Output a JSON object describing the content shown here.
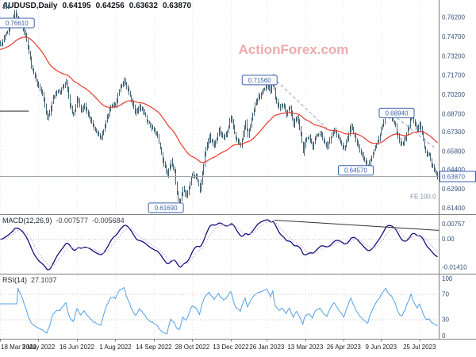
{
  "window": {
    "title_symbol": "AUDUSD,Daily",
    "ohlc": {
      "open": "0.64195",
      "high": "0.64256",
      "low": "0.63632",
      "close": "0.63870"
    }
  },
  "watermark": "ActionForex.com",
  "indicators": {
    "macd": {
      "label": "MACD(12,26,9)",
      "value_main": "-0.007577",
      "value_signal": "-0.005684"
    },
    "rsi": {
      "label": "RSI(14)",
      "value": "27.1037"
    }
  },
  "colors": {
    "candle": "#456575",
    "ma": "#e8392c",
    "macd_main": "#10107e",
    "macd_signal": "#cc99cc",
    "rsi": "#55a0e6",
    "axis_text": "#33517a",
    "label": "#3a5fae",
    "date_text": "#1c1c1c",
    "watermark": "#ecaaaa",
    "grid": "#e4e4ec",
    "separator": "#7f7f7f",
    "current_line": "#a0a6ad",
    "trend_dash": "#9aa2ac",
    "macd_trend": "#333333",
    "fe_text": "#7f93a8",
    "rsi_level": "#c0c0d2",
    "zero_line": "#c8c8c8",
    "hline": "#3c3c3c"
  },
  "chart_data": {
    "type": "candlestick",
    "symbol": "AUDUSD",
    "timeframe": "Daily",
    "last_bar": {
      "open": 0.64195,
      "high": 0.64256,
      "low": 0.63632,
      "close": 0.6387
    },
    "price_panel": {
      "days": 365,
      "range": [
        0.6095,
        0.7755
      ],
      "ma": {
        "period": 55,
        "seed": 0.737
      },
      "close_waypoints": [
        [
          0,
          0.741
        ],
        [
          5,
          0.75
        ],
        [
          9,
          0.756
        ],
        [
          12,
          0.766
        ],
        [
          15,
          0.76
        ],
        [
          18,
          0.756
        ],
        [
          22,
          0.745
        ],
        [
          26,
          0.725
        ],
        [
          29,
          0.715
        ],
        [
          32,
          0.709
        ],
        [
          35,
          0.702
        ],
        [
          37,
          0.693
        ],
        [
          39,
          0.683
        ],
        [
          41,
          0.688
        ],
        [
          44,
          0.7
        ],
        [
          47,
          0.705
        ],
        [
          50,
          0.705
        ],
        [
          55,
          0.712
        ],
        [
          58,
          0.695
        ],
        [
          61,
          0.686
        ],
        [
          64,
          0.7
        ],
        [
          67,
          0.69
        ],
        [
          70,
          0.694
        ],
        [
          74,
          0.685
        ],
        [
          78,
          0.676
        ],
        [
          81,
          0.672
        ],
        [
          84,
          0.669
        ],
        [
          88,
          0.681
        ],
        [
          92,
          0.693
        ],
        [
          96,
          0.694
        ],
        [
          99,
          0.706
        ],
        [
          103,
          0.713
        ],
        [
          107,
          0.703
        ],
        [
          110,
          0.695
        ],
        [
          113,
          0.688
        ],
        [
          116,
          0.693
        ],
        [
          119,
          0.689
        ],
        [
          122,
          0.683
        ],
        [
          125,
          0.678
        ],
        [
          128,
          0.6746
        ],
        [
          131,
          0.67
        ],
        [
          134,
          0.656
        ],
        [
          136,
          0.648
        ],
        [
          139,
          0.64
        ],
        [
          142,
          0.65
        ],
        [
          145,
          0.642
        ],
        [
          147,
          0.625
        ],
        [
          149,
          0.617
        ],
        [
          152,
          0.63
        ],
        [
          155,
          0.622
        ],
        [
          158,
          0.634
        ],
        [
          160,
          0.641
        ],
        [
          163,
          0.639
        ],
        [
          166,
          0.628
        ],
        [
          170,
          0.655
        ],
        [
          174,
          0.67
        ],
        [
          178,
          0.662
        ],
        [
          182,
          0.675
        ],
        [
          186,
          0.668
        ],
        [
          189,
          0.674
        ],
        [
          192,
          0.6857
        ],
        [
          196,
          0.668
        ],
        [
          200,
          0.663
        ],
        [
          204,
          0.681
        ],
        [
          206,
          0.669
        ],
        [
          210,
          0.688
        ],
        [
          214,
          0.699
        ],
        [
          218,
          0.704
        ],
        [
          222,
          0.71
        ],
        [
          225,
          0.705
        ],
        [
          227,
          0.7156
        ],
        [
          229,
          0.699
        ],
        [
          232,
          0.692
        ],
        [
          235,
          0.695
        ],
        [
          238,
          0.687
        ],
        [
          241,
          0.693
        ],
        [
          244,
          0.679
        ],
        [
          247,
          0.685
        ],
        [
          250,
          0.672
        ],
        [
          252,
          0.658
        ],
        [
          254,
          0.666
        ],
        [
          257,
          0.67
        ],
        [
          260,
          0.662
        ],
        [
          263,
          0.67
        ],
        [
          266,
          0.673
        ],
        [
          269,
          0.666
        ],
        [
          272,
          0.662
        ],
        [
          275,
          0.669
        ],
        [
          278,
          0.675
        ],
        [
          281,
          0.67
        ],
        [
          284,
          0.664
        ],
        [
          286,
          0.66
        ],
        [
          289,
          0.668
        ],
        [
          292,
          0.678
        ],
        [
          295,
          0.67
        ],
        [
          298,
          0.662
        ],
        [
          301,
          0.655
        ],
        [
          304,
          0.649
        ],
        [
          306,
          0.646
        ],
        [
          309,
          0.654
        ],
        [
          312,
          0.662
        ],
        [
          314,
          0.666
        ],
        [
          317,
          0.6745
        ],
        [
          319,
          0.681
        ],
        [
          321,
          0.6894
        ],
        [
          323,
          0.686
        ],
        [
          326,
          0.683
        ],
        [
          329,
          0.677
        ],
        [
          332,
          0.666
        ],
        [
          334,
          0.663
        ],
        [
          337,
          0.668
        ],
        [
          340,
          0.678
        ],
        [
          342,
          0.6885
        ],
        [
          344,
          0.682
        ],
        [
          347,
          0.675
        ],
        [
          349,
          0.679
        ],
        [
          351,
          0.672
        ],
        [
          353,
          0.662
        ],
        [
          355,
          0.654
        ],
        [
          357,
          0.656
        ],
        [
          359,
          0.648
        ],
        [
          361,
          0.644
        ],
        [
          363,
          0.641
        ],
        [
          364,
          0.6387
        ]
      ],
      "y_ticks": [
        {
          "v": 0.762,
          "label": "0.76200"
        },
        {
          "v": 0.747,
          "label": "0.74700"
        },
        {
          "v": 0.732,
          "label": "0.73200"
        },
        {
          "v": 0.717,
          "label": "0.71700"
        },
        {
          "v": 0.702,
          "label": "0.70200"
        },
        {
          "v": 0.687,
          "label": "0.68700"
        },
        {
          "v": 0.673,
          "label": "0.67300"
        },
        {
          "v": 0.658,
          "label": "0.65800"
        },
        {
          "v": 0.644,
          "label": "0.64400"
        },
        {
          "v": 0.629,
          "label": "0.62900"
        },
        {
          "v": 0.614,
          "label": "0.61400"
        }
      ],
      "current_price": {
        "v": 0.6387,
        "label": "0.63870"
      },
      "annotations": [
        {
          "type": "hline",
          "d1": 0,
          "d2": 24,
          "price": 0.6894
        },
        {
          "type": "dash",
          "d1": 227,
          "p1": 0.7156,
          "d2": 272,
          "p2": 0.676
        },
        {
          "type": "dash",
          "d1": 323,
          "p1": 0.6894,
          "d2": 363,
          "p2": 0.66
        },
        {
          "type": "box",
          "day": 14,
          "price": 0.7577,
          "text": "0.76610"
        },
        {
          "type": "box",
          "day": 216,
          "price": 0.7135,
          "text": "0.71560"
        },
        {
          "type": "box",
          "day": 330,
          "price": 0.688,
          "text": "0.68940"
        },
        {
          "type": "box",
          "day": 296,
          "price": 0.6435,
          "text": "0.64570"
        },
        {
          "type": "box",
          "day": 138,
          "price": 0.6145,
          "text": "0.61690"
        },
        {
          "type": "text",
          "day": 352,
          "price": 0.6215,
          "text": "FE 100.0"
        }
      ]
    },
    "macd_panel": {
      "params": [
        12,
        26,
        9
      ],
      "current_main": -0.007577,
      "current_signal": -0.005684,
      "y_ticks": [
        {
          "v": 0.00757,
          "label": "0.00757"
        },
        {
          "v": 0,
          "label": "0.00"
        },
        {
          "v": -0.0141,
          "label": "-0.01410"
        }
      ],
      "trendline": {
        "d1": 228,
        "v1": 0.0096,
        "d2": 365,
        "v2": 0.0045
      }
    },
    "rsi_panel": {
      "period": 14,
      "current": 27.1037,
      "levels": [
        70,
        30
      ],
      "y_ticks": [
        {
          "v": 100,
          "label": "100"
        },
        {
          "v": 70,
          "label": "70"
        },
        {
          "v": 30,
          "label": "30"
        },
        {
          "v": 0,
          "label": "0"
        }
      ]
    },
    "x_axis": {
      "ticks": [
        {
          "day": 0,
          "label": "18 Mar 2022"
        },
        {
          "day": 32,
          "label": "3 May 2022"
        },
        {
          "day": 64,
          "label": "16 Jun 2022"
        },
        {
          "day": 96,
          "label": "1 Aug 2022"
        },
        {
          "day": 128,
          "label": "14 Sep 2022"
        },
        {
          "day": 160,
          "label": "28 Oct 2022"
        },
        {
          "day": 192,
          "label": "13 Dec 2022"
        },
        {
          "day": 222,
          "label": "26 Jan 2023"
        },
        {
          "day": 254,
          "label": "13 Mar 2023"
        },
        {
          "day": 286,
          "label": "26 Apr 2023"
        },
        {
          "day": 317,
          "label": "9 Jun 2023"
        },
        {
          "day": 349,
          "label": "25 Jul 2023"
        }
      ]
    }
  }
}
